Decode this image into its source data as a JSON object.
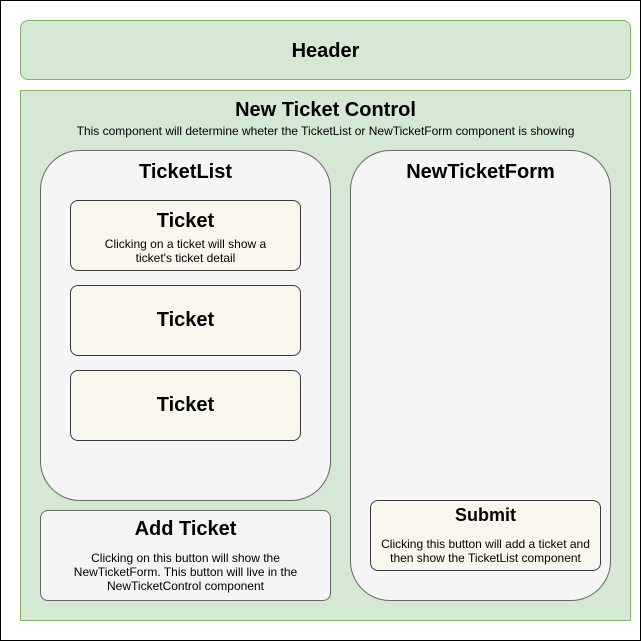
{
  "header": {
    "title": "Header"
  },
  "control": {
    "title": "New Ticket Control",
    "description": "This component will determine wheter the TicketList or NewTicketForm component is showing"
  },
  "ticket_list": {
    "title": "TicketList",
    "tickets": [
      {
        "title": "Ticket",
        "description": "Clicking on a ticket will show a ticket's ticket detail"
      },
      {
        "title": "Ticket"
      },
      {
        "title": "Ticket"
      }
    ]
  },
  "add_ticket": {
    "title": "Add Ticket",
    "description": "Clicking on this button will show the NewTicketForm. This button will live in the NewTicketControl component"
  },
  "new_ticket_form": {
    "title": "NewTicketForm",
    "submit": {
      "title": "Submit",
      "description": "Clicking this button will add a ticket and then show the TicketList component"
    }
  },
  "colors": {
    "green_fill": "#d5e8d4",
    "green_stroke": "#82b366",
    "grey_fill": "#f5f5f5",
    "grey_stroke": "#666666",
    "cream_fill": "#f9f7ed",
    "cream_stroke": "#36393d"
  }
}
